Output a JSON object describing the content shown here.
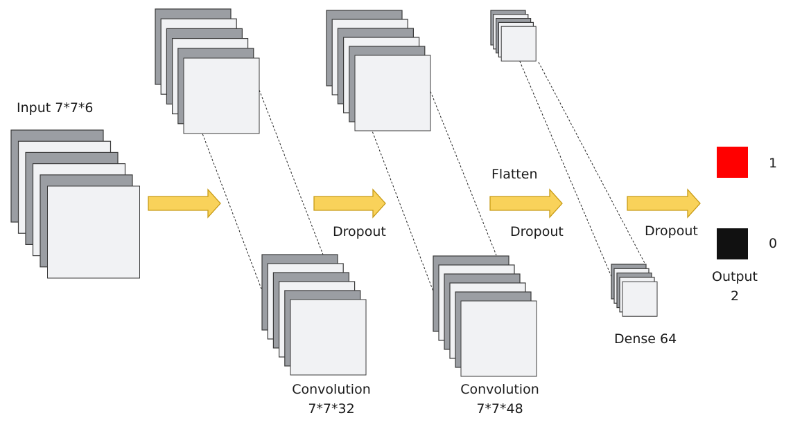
{
  "colors": {
    "sheet_dark": "#9b9ea3",
    "sheet_light": "#f1f2f4",
    "sheet_stroke": "#3a3a3a",
    "arrow_fill": "#f9d25a",
    "arrow_stroke": "#c79a14",
    "output_class_1": "#ff0000",
    "output_class_0": "#111111"
  },
  "labels": {
    "input": "Input 7*7*6",
    "conv1_name": "Convolution",
    "conv1_dims": "7*7*32",
    "conv2_name": "Convolution",
    "conv2_dims": "7*7*48",
    "dropout_1": "Dropout",
    "flatten": "Flatten",
    "dropout_2": "Dropout",
    "dense": "Dense 64",
    "dropout_3": "Dropout",
    "output_name": "Output",
    "output_count": "2",
    "class_1": "1",
    "class_0": "0"
  }
}
